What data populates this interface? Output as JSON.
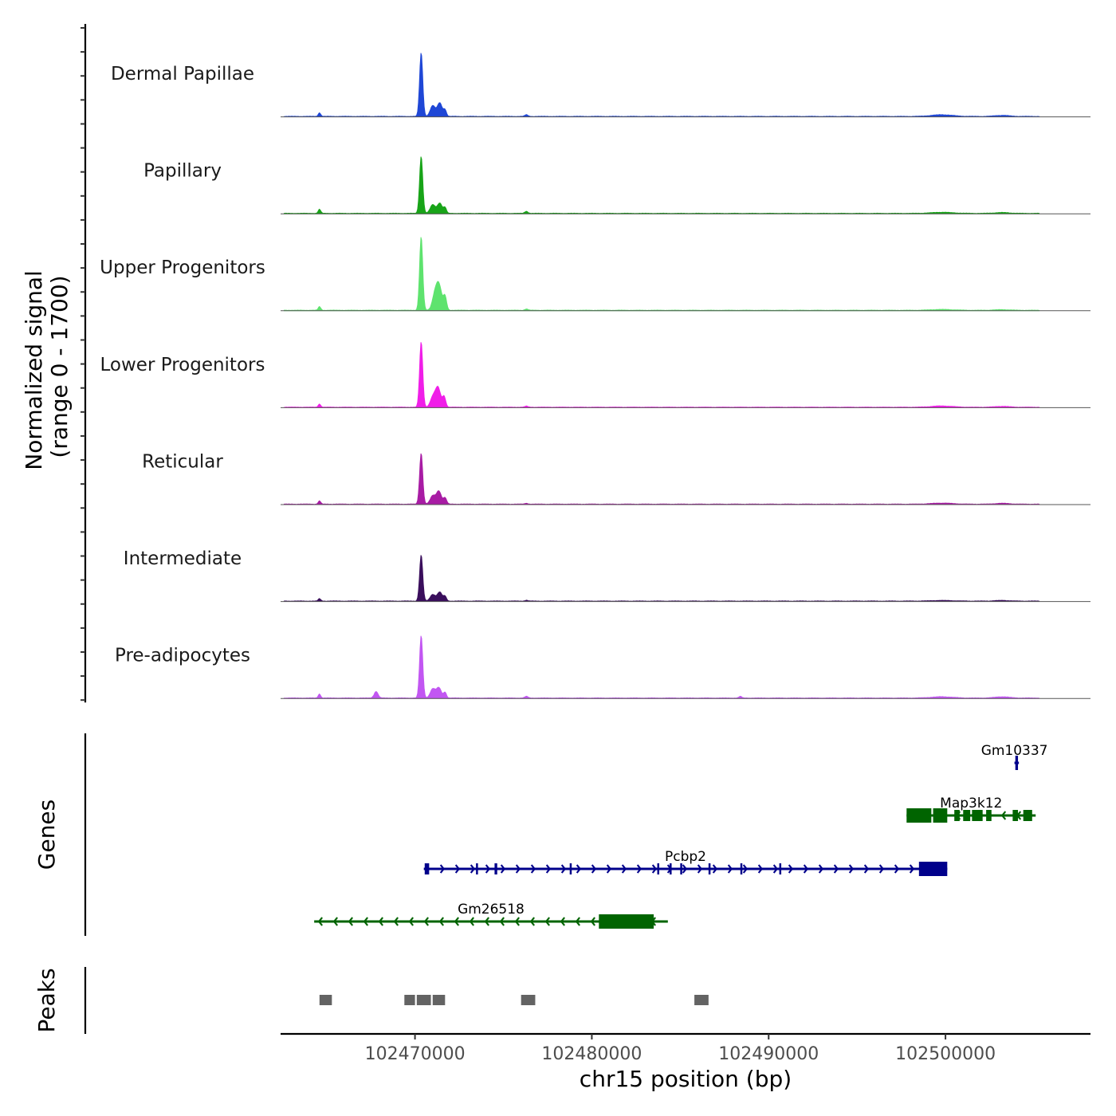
{
  "chart_data": {
    "type": "area",
    "title": "",
    "chromosome": "chr15",
    "xlabel": "chr15 position (bp)",
    "ylabel": "Normalized signal\n(range 0 - 1700)",
    "ylabel_line1": "Normalized signal",
    "ylabel_line2": "(range 0 - 1700)",
    "ylim": [
      0,
      1700
    ],
    "xlim": [
      102462400,
      102508200
    ],
    "x_ticks": [
      102470000,
      102480000,
      102490000,
      102500000
    ],
    "x_tick_labels": [
      "102470000",
      "102480000",
      "102490000",
      "102500000"
    ],
    "genes_label": "Genes",
    "peaks_label": "Peaks",
    "tracks": [
      {
        "name": "Dermal Papillae",
        "color": "#1f47d6",
        "peaks": [
          [
            102464600,
            90,
            70
          ],
          [
            102470350,
            1560,
            90
          ],
          [
            102471000,
            260,
            140
          ],
          [
            102471400,
            330,
            140
          ],
          [
            102471700,
            150,
            80
          ],
          [
            102476300,
            40,
            90
          ],
          [
            102499800,
            40,
            600
          ],
          [
            102503200,
            25,
            400
          ]
        ]
      },
      {
        "name": "Papillary",
        "color": "#18a418",
        "peaks": [
          [
            102464600,
            100,
            70
          ],
          [
            102470350,
            1400,
            90
          ],
          [
            102471000,
            210,
            140
          ],
          [
            102471400,
            250,
            140
          ],
          [
            102471700,
            130,
            80
          ],
          [
            102476300,
            50,
            90
          ],
          [
            102499800,
            25,
            600
          ],
          [
            102503200,
            20,
            400
          ]
        ]
      },
      {
        "name": "Upper Progenitors",
        "color": "#5ee36e",
        "peaks": [
          [
            102464600,
            90,
            70
          ],
          [
            102470350,
            1800,
            90
          ],
          [
            102471100,
            300,
            140
          ],
          [
            102471350,
            620,
            160
          ],
          [
            102471700,
            320,
            90
          ],
          [
            102476300,
            30,
            90
          ],
          [
            102499800,
            20,
            600
          ],
          [
            102503200,
            15,
            400
          ]
        ]
      },
      {
        "name": "Lower Progenitors",
        "color": "#f01ee8",
        "peaks": [
          [
            102464600,
            80,
            70
          ],
          [
            102470350,
            1600,
            90
          ],
          [
            102471000,
            230,
            140
          ],
          [
            102471300,
            480,
            150
          ],
          [
            102471650,
            250,
            90
          ],
          [
            102476300,
            25,
            90
          ],
          [
            102499800,
            30,
            600
          ],
          [
            102503200,
            20,
            400
          ]
        ]
      },
      {
        "name": "Reticular",
        "color": "#a81ca4",
        "peaks": [
          [
            102464600,
            80,
            70
          ],
          [
            102470350,
            1250,
            90
          ],
          [
            102471000,
            200,
            140
          ],
          [
            102471350,
            320,
            140
          ],
          [
            102471700,
            150,
            90
          ],
          [
            102476300,
            20,
            90
          ],
          [
            102499800,
            25,
            600
          ],
          [
            102503200,
            20,
            400
          ]
        ]
      },
      {
        "name": "Intermediate",
        "color": "#3a0f5c",
        "peaks": [
          [
            102464600,
            60,
            70
          ],
          [
            102470350,
            1130,
            90
          ],
          [
            102471000,
            160,
            140
          ],
          [
            102471400,
            220,
            140
          ],
          [
            102471700,
            110,
            80
          ],
          [
            102476300,
            20,
            90
          ],
          [
            102499800,
            15,
            600
          ],
          [
            102503200,
            15,
            400
          ]
        ]
      },
      {
        "name": "Pre-adipocytes",
        "color": "#c256f2",
        "peaks": [
          [
            102464600,
            100,
            70
          ],
          [
            102467800,
            160,
            110
          ],
          [
            102470350,
            1530,
            90
          ],
          [
            102471000,
            220,
            140
          ],
          [
            102471350,
            250,
            140
          ],
          [
            102471700,
            140,
            80
          ],
          [
            102476300,
            40,
            90
          ],
          [
            102488400,
            40,
            80
          ],
          [
            102499800,
            30,
            600
          ],
          [
            102503200,
            30,
            400
          ]
        ]
      }
    ],
    "genes": [
      {
        "name": "Gm10337",
        "strand": "+",
        "color": "#00008b",
        "row": 0,
        "start": 102503900,
        "end": 102504150,
        "exons": [
          [
            102503950,
            102504100
          ]
        ],
        "thick": [
          102503950,
          102504100
        ]
      },
      {
        "name": "Map3k12",
        "strand": "-",
        "color": "#006400",
        "row": 1,
        "start": 102497800,
        "end": 102505100,
        "exons": [
          [
            102497800,
            102499200
          ],
          [
            102499300,
            102500100
          ],
          [
            102500500,
            102500800
          ],
          [
            102501000,
            102501400
          ],
          [
            102501500,
            102502100
          ],
          [
            102502300,
            102502600
          ],
          [
            102503800,
            102504100
          ],
          [
            102504400,
            102504900
          ]
        ],
        "thick": [
          102497800,
          102500100
        ]
      },
      {
        "name": "Pcbp2",
        "strand": "+",
        "color": "#00008b",
        "row": 2,
        "start": 102470500,
        "end": 102500100,
        "exons": [
          [
            102470550,
            102470800
          ],
          [
            102473450,
            102473550
          ],
          [
            102474500,
            102474650
          ],
          [
            102478750,
            102478850
          ],
          [
            102483700,
            102483800
          ],
          [
            102484400,
            102484500
          ],
          [
            102485000,
            102485100
          ],
          [
            102486600,
            102486700
          ],
          [
            102488400,
            102488500
          ],
          [
            102490600,
            102490700
          ],
          [
            102498500,
            102500100
          ]
        ],
        "thick": [
          102498500,
          102500100
        ]
      },
      {
        "name": "Gm26518",
        "strand": "-",
        "color": "#006400",
        "row": 3,
        "start": 102464300,
        "end": 102484300,
        "exons": [
          [
            102480400,
            102483500
          ]
        ],
        "thick": [
          102480400,
          102483500
        ]
      }
    ],
    "peak_regions": [
      [
        102464600,
        102465300
      ],
      [
        102469400,
        102470000
      ],
      [
        102470100,
        102470900
      ],
      [
        102471000,
        102471700
      ],
      [
        102476000,
        102476800
      ],
      [
        102485800,
        102486600
      ]
    ],
    "peak_color": "#636363"
  }
}
